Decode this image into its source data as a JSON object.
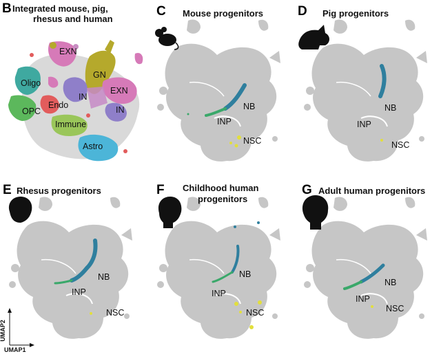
{
  "panels": {
    "B": {
      "letter": "B",
      "title_lines": [
        "Integrated mouse, pig,",
        "rhesus and human"
      ],
      "cluster_labels": [
        "EXN",
        "GN",
        "EXN",
        "IN",
        "IN",
        "Oligo",
        "Endo",
        "OPC",
        "Immune",
        "Astro"
      ]
    },
    "C": {
      "letter": "C",
      "title_lines": [
        "Mouse progenitors"
      ],
      "species_icon": "mouse-icon",
      "labels": [
        "NB",
        "INP",
        "NSC"
      ]
    },
    "D": {
      "letter": "D",
      "title_lines": [
        "Pig progenitors"
      ],
      "species_icon": "pig-icon",
      "labels": [
        "NB",
        "INP",
        "NSC"
      ]
    },
    "E": {
      "letter": "E",
      "title_lines": [
        "Rhesus progenitors"
      ],
      "species_icon": "rhesus-head-icon",
      "labels": [
        "NB",
        "INP",
        "NSC"
      ]
    },
    "F": {
      "letter": "F",
      "title_lines": [
        "Childhood human",
        "progenitors"
      ],
      "species_icon": "child-head-icon",
      "labels": [
        "NB",
        "INP",
        "NSC"
      ]
    },
    "G": {
      "letter": "G",
      "title_lines": [
        "Adult human progenitors"
      ],
      "species_icon": "adult-head-icon",
      "labels": [
        "NB",
        "INP",
        "NSC"
      ]
    }
  },
  "axes": {
    "y": "UMAP2",
    "x": "UMAP1"
  },
  "colors": {
    "background_cells": "#c6c6c6",
    "NB": "#2f7f9e",
    "INP": "#3aa86a",
    "NSC": "#e2df3c",
    "EXN": "#d67ab8",
    "GN": "#b5a92c",
    "IN": "#8f7fc9",
    "Oligo": "#3fa9a0",
    "OPC": "#5cb85c",
    "Endo": "#e25c5c",
    "Immune": "#9ac65a",
    "Astro": "#4cb5d8"
  }
}
